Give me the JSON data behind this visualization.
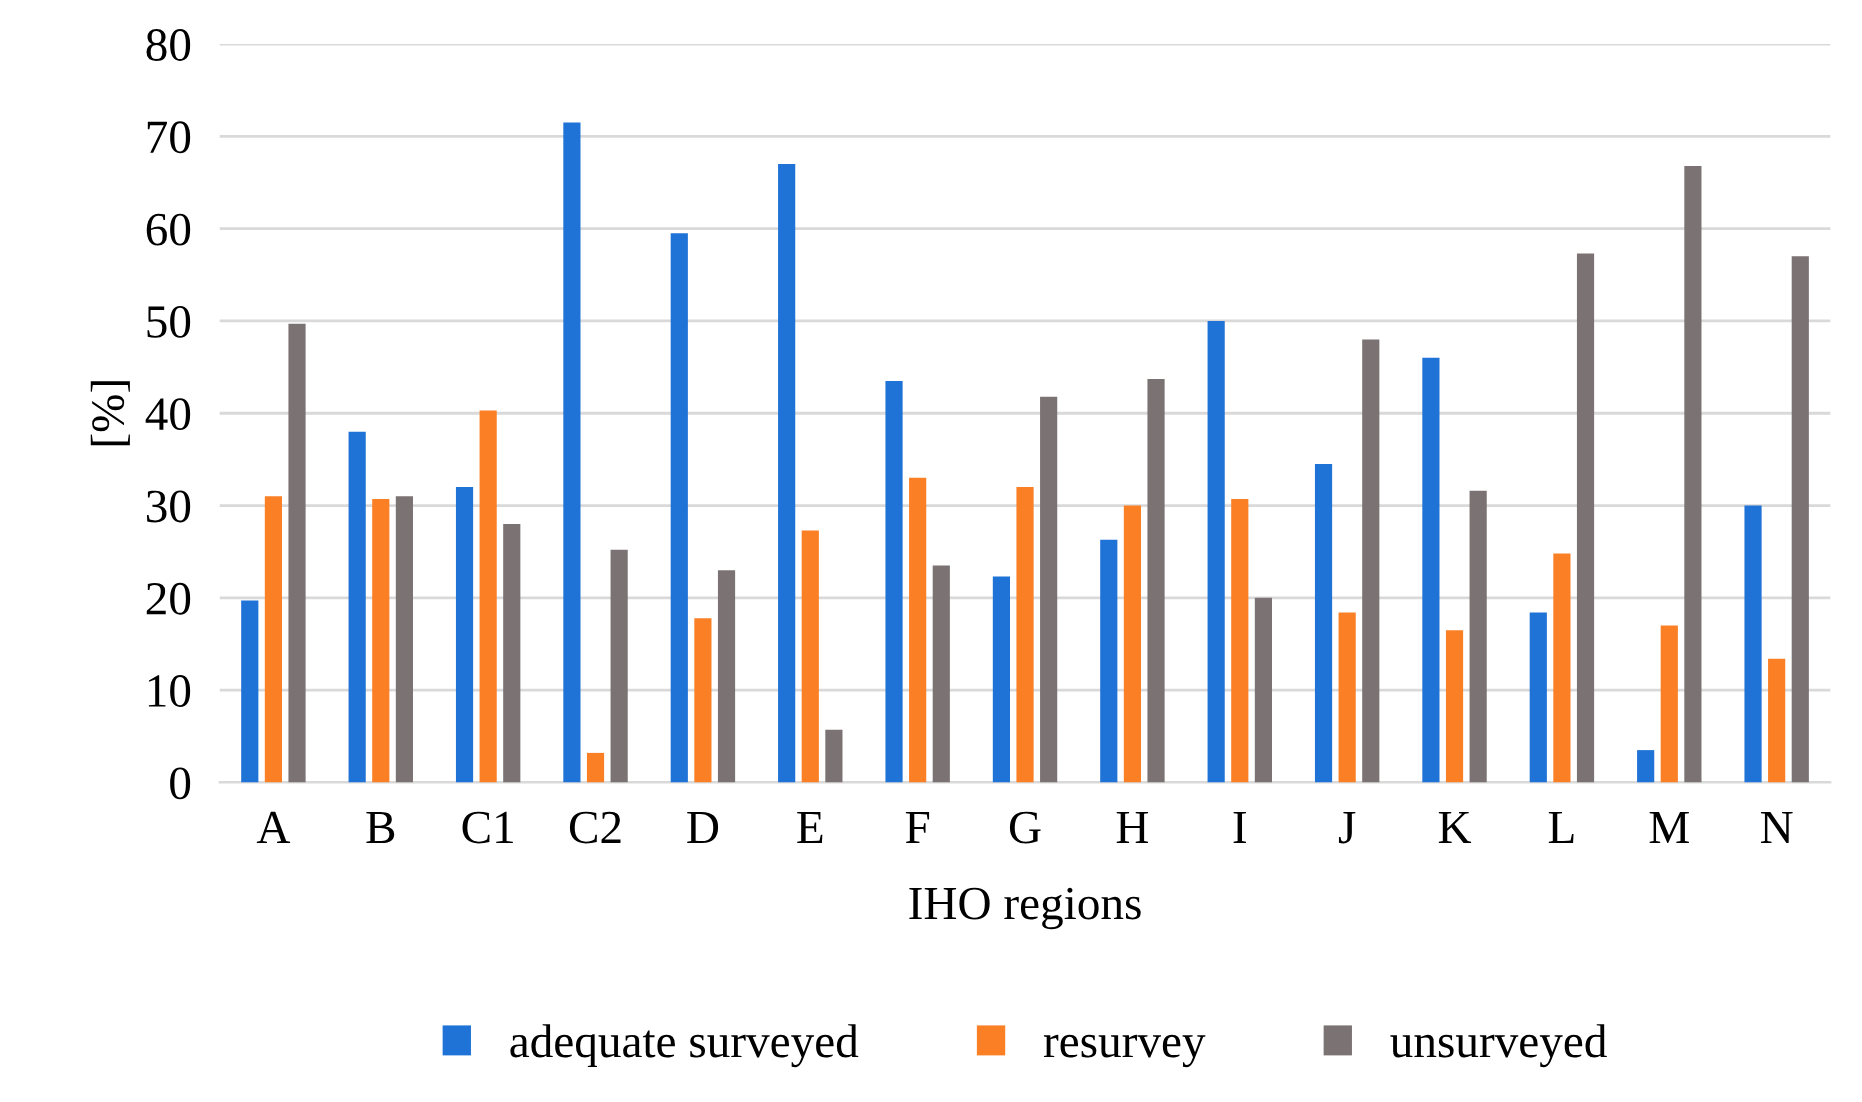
{
  "chart_data": {
    "type": "bar",
    "xlabel": "IHO regions",
    "ylabel": "[%]",
    "categories": [
      "A",
      "B",
      "C1",
      "C2",
      "D",
      "E",
      "F",
      "G",
      "H",
      "I",
      "J",
      "K",
      "L",
      "M",
      "N"
    ],
    "series": [
      {
        "name": "adequate surveyed",
        "color": "#1f72d6",
        "values": [
          19.7,
          38,
          32,
          71.5,
          59.5,
          67,
          43.5,
          22.3,
          26.3,
          50,
          34.5,
          46,
          18.4,
          3.5,
          30
        ]
      },
      {
        "name": "resurvey",
        "color": "#fb7f25",
        "values": [
          31,
          30.7,
          40.3,
          3.2,
          17.8,
          27.3,
          33,
          32,
          30,
          30.7,
          18.4,
          16.5,
          24.8,
          17,
          13.4
        ]
      },
      {
        "name": "unsurveyed",
        "color": "#7b7373",
        "values": [
          49.7,
          31,
          28,
          25.2,
          23,
          5.7,
          23.5,
          41.8,
          43.7,
          20,
          48,
          31.6,
          57.3,
          66.8,
          57
        ]
      }
    ],
    "ylim": [
      0,
      80
    ],
    "yticks": [
      0,
      10,
      20,
      30,
      40,
      50,
      60,
      70,
      80
    ],
    "grid": "y",
    "legend": "bottom"
  }
}
